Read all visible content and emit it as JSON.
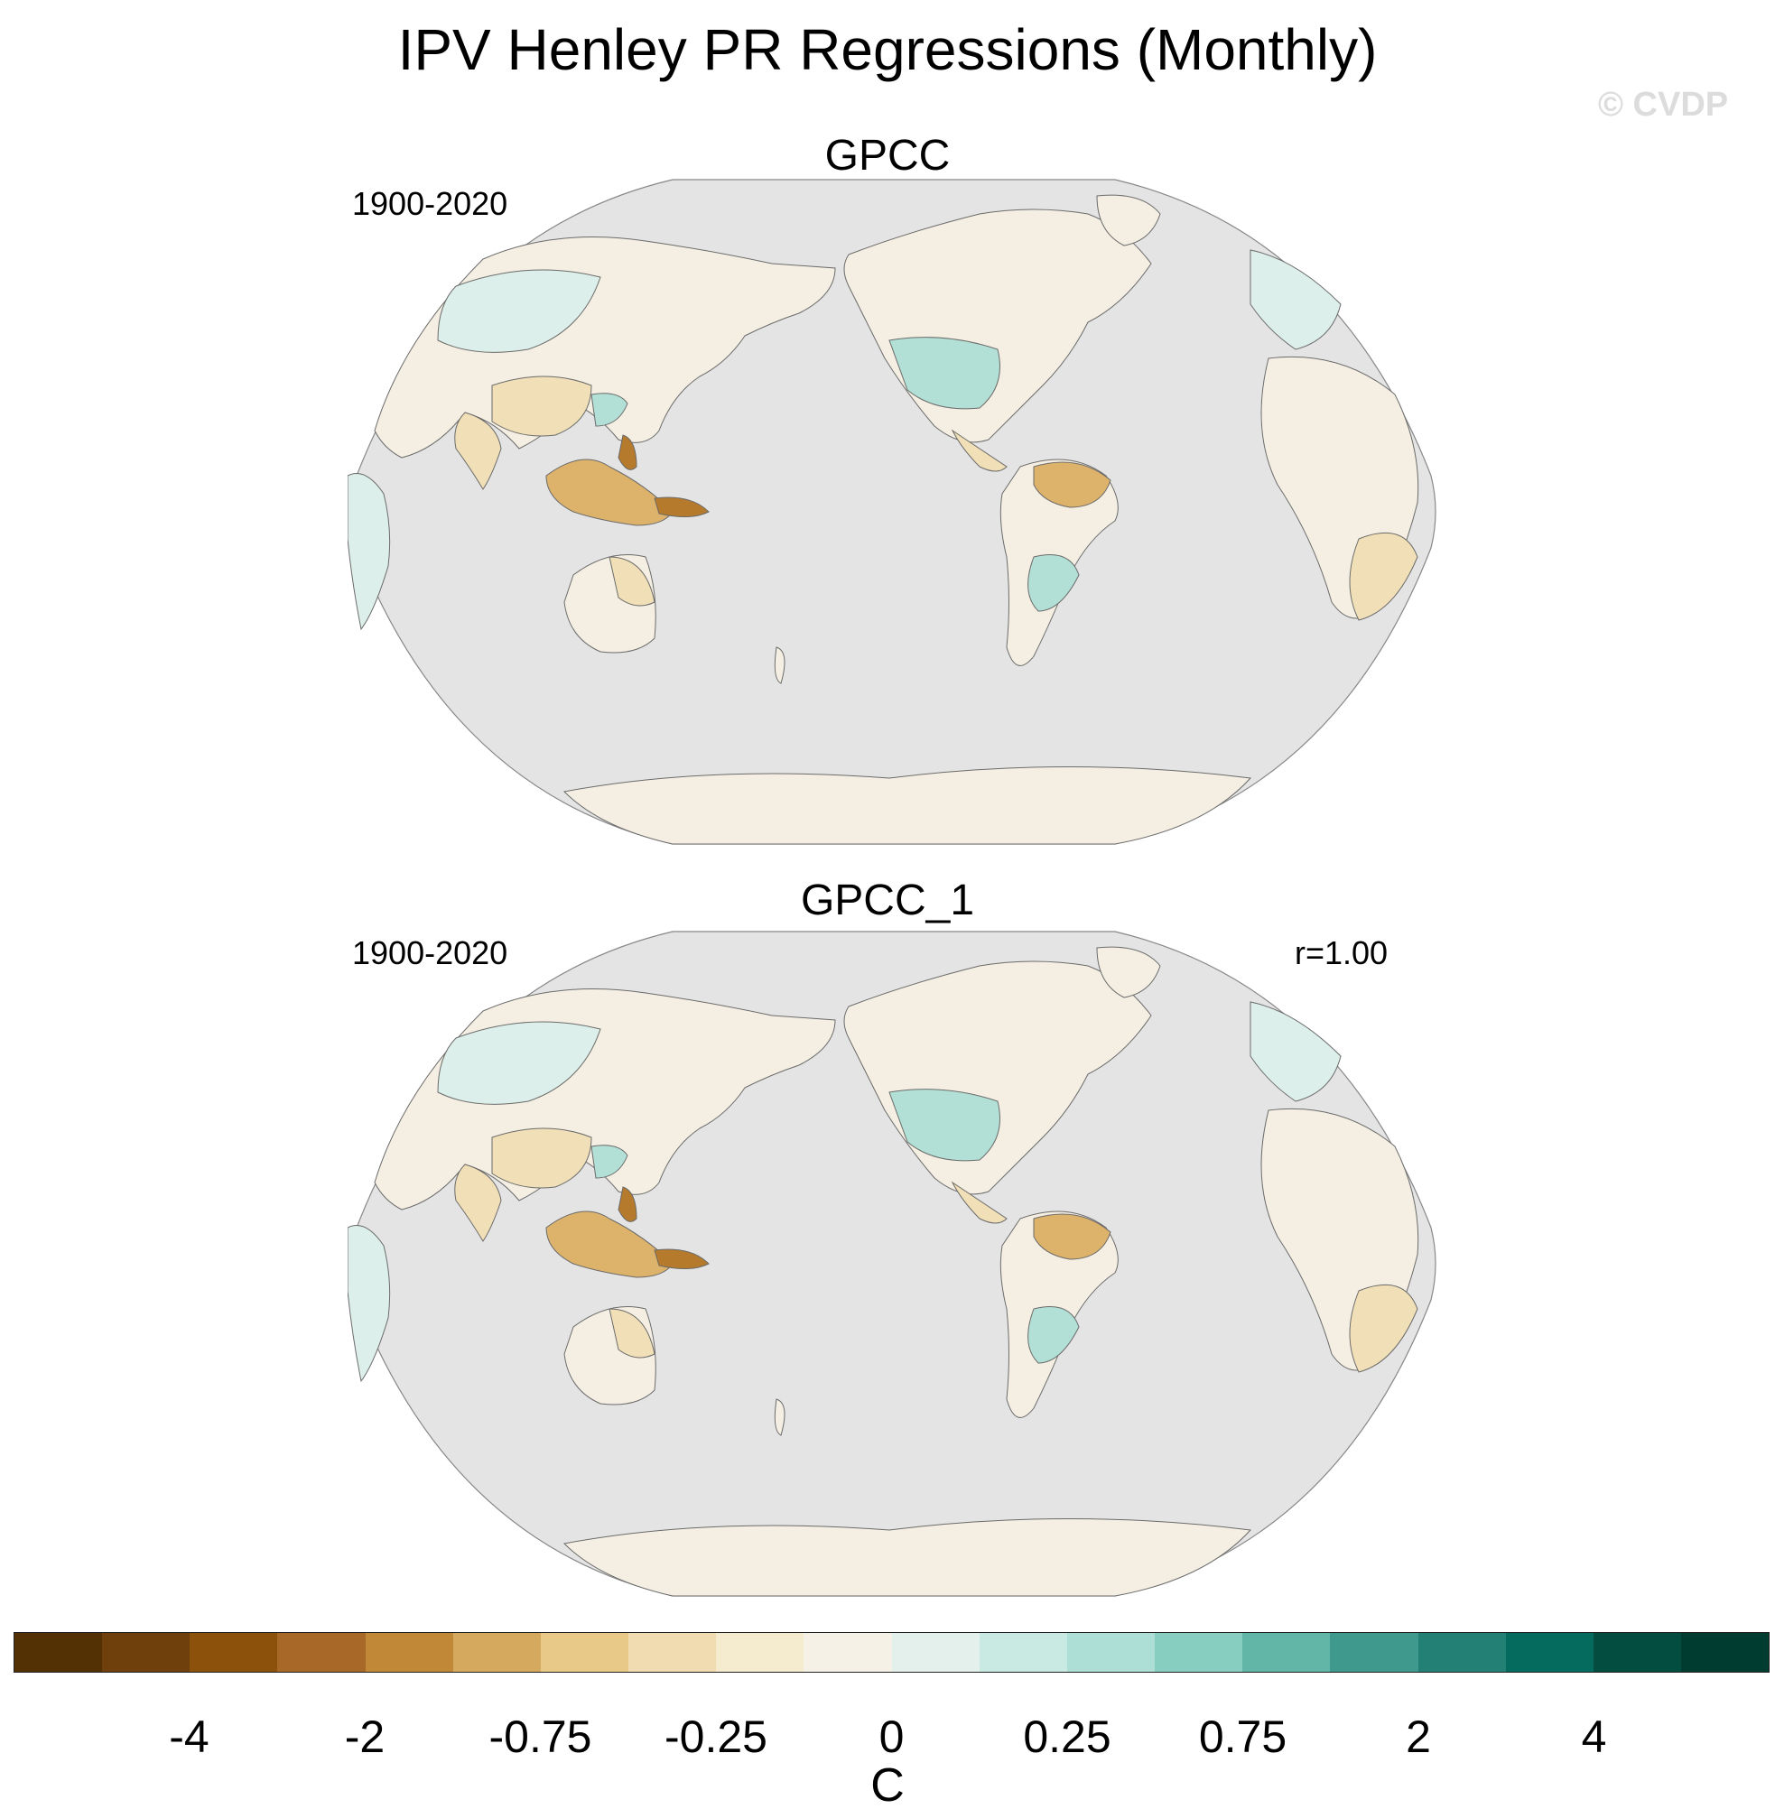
{
  "title": "IPV Henley PR Regressions (Monthly)",
  "watermark": "© CVDP",
  "panels": [
    {
      "title": "GPCC",
      "period": "1900-2020",
      "stat": ""
    },
    {
      "title": "GPCC_1",
      "period": "1900-2020",
      "stat": "r=1.00"
    }
  ],
  "colorbar": {
    "units": "C",
    "tick_labels": [
      "-4",
      "-2",
      "-0.75",
      "-0.25",
      "0",
      "0.25",
      "0.75",
      "2",
      "4"
    ],
    "colors": [
      "#543005",
      "#6f3f0c",
      "#8c510a",
      "#a86828",
      "#c18838",
      "#d5a95e",
      "#e8c988",
      "#f0dcb0",
      "#f5eccf",
      "#f5f1e7",
      "#e4f0ec",
      "#c9e9e3",
      "#addfd6",
      "#88cec0",
      "#62b6a8",
      "#3f998c",
      "#228074",
      "#066b5f",
      "#024c40",
      "#003c30"
    ]
  },
  "colors": {
    "ocean": "#e4e4e4",
    "land_neutral": "#f4efe2",
    "land_wet_light": "#dcefea",
    "land_wet": "#b3e0d6",
    "land_dry_light": "#f1e0b7",
    "land_dry": "#ddb26a",
    "land_dry_strong": "#b57a2b",
    "coast": "#6b6b6b"
  }
}
